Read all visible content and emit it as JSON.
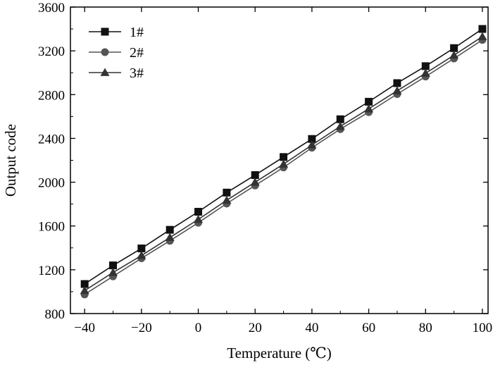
{
  "chart_data": {
    "type": "line",
    "xlabel": "Temperature (℃)",
    "ylabel": "Output code",
    "xlim": [
      -45,
      102
    ],
    "ylim": [
      800,
      3600
    ],
    "xticks": [
      -40,
      -20,
      0,
      20,
      40,
      60,
      80,
      100
    ],
    "xtick_labels": [
      "−40",
      "−20",
      "0",
      "20",
      "40",
      "60",
      "80",
      "100"
    ],
    "yticks": [
      800,
      1200,
      1600,
      2000,
      2400,
      2800,
      3200,
      3600
    ],
    "ytick_labels": [
      "800",
      "1200",
      "1600",
      "2000",
      "2400",
      "2800",
      "3200",
      "3600"
    ],
    "grid": false,
    "legend_position": "top-left",
    "x": [
      -40,
      -30,
      -20,
      -10,
      0,
      10,
      20,
      30,
      40,
      50,
      60,
      70,
      80,
      90,
      100
    ],
    "series": [
      {
        "name": "1#",
        "marker": "square",
        "values": [
          1070,
          1240,
          1395,
          1565,
          1730,
          1905,
          2065,
          2230,
          2395,
          2575,
          2735,
          2905,
          3060,
          3225,
          3400
        ]
      },
      {
        "name": "2#",
        "marker": "circle",
        "values": [
          975,
          1140,
          1305,
          1465,
          1630,
          1805,
          1970,
          2135,
          2315,
          2485,
          2640,
          2805,
          2965,
          3130,
          3300
        ]
      },
      {
        "name": "3#",
        "marker": "triangle",
        "values": [
          1010,
          1175,
          1330,
          1495,
          1660,
          1835,
          2000,
          2165,
          2340,
          2510,
          2670,
          2835,
          2995,
          3160,
          3330
        ]
      }
    ],
    "colors": {
      "1#": "#111111",
      "2#": "#555555",
      "3#": "#333333"
    }
  }
}
